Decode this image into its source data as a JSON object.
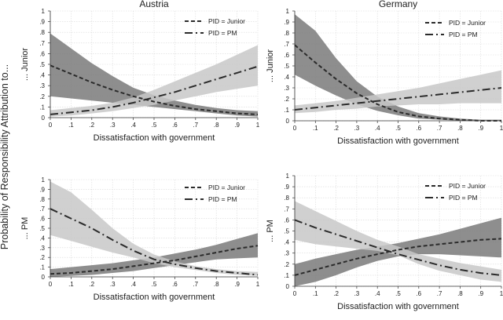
{
  "ylabel_global": "Probability of Responsibility Attribution to...",
  "chart_data": [
    {
      "type": "line",
      "title": "Austria",
      "xlabel": "Dissatisfaction with government",
      "ylabel": "... Junior",
      "xlim": [
        0,
        1
      ],
      "ylim": [
        0,
        1
      ],
      "xticks": [
        "0",
        ".1",
        ".2",
        ".3",
        ".4",
        ".5",
        ".6",
        ".7",
        ".8",
        ".9",
        "1"
      ],
      "yticks": [
        "0",
        ".1",
        ".2",
        ".3",
        ".4",
        ".5",
        ".6",
        ".7",
        ".8",
        ".9",
        "1"
      ],
      "legend": [
        "PID = Junior",
        "PID = PM"
      ],
      "x": [
        0,
        0.1,
        0.2,
        0.3,
        0.4,
        0.5,
        0.6,
        0.7,
        0.8,
        0.9,
        1
      ],
      "series": [
        {
          "name": "PID = Junior",
          "style": "dashed",
          "band_color": "#7a7a7a",
          "values": [
            0.49,
            0.41,
            0.33,
            0.26,
            0.2,
            0.15,
            0.11,
            0.08,
            0.06,
            0.04,
            0.03
          ],
          "lower": [
            0.2,
            0.18,
            0.16,
            0.14,
            0.12,
            0.1,
            0.08,
            0.06,
            0.04,
            0.02,
            0.01
          ],
          "upper": [
            0.79,
            0.65,
            0.51,
            0.39,
            0.28,
            0.21,
            0.16,
            0.12,
            0.09,
            0.07,
            0.06
          ]
        },
        {
          "name": "PID = PM",
          "style": "dashdot",
          "band_color": "#c8c8c8",
          "values": [
            0.03,
            0.05,
            0.07,
            0.1,
            0.14,
            0.19,
            0.24,
            0.3,
            0.36,
            0.42,
            0.48
          ],
          "lower": [
            0.01,
            0.02,
            0.04,
            0.06,
            0.09,
            0.12,
            0.16,
            0.2,
            0.24,
            0.27,
            0.3
          ],
          "upper": [
            0.07,
            0.09,
            0.11,
            0.14,
            0.19,
            0.26,
            0.34,
            0.42,
            0.5,
            0.59,
            0.68
          ]
        }
      ]
    },
    {
      "type": "line",
      "title": "Germany",
      "xlabel": "Dissatisfaction with government",
      "ylabel": "... Junior",
      "xlim": [
        0,
        1
      ],
      "ylim": [
        0,
        1
      ],
      "xticks": [
        "0",
        ".1",
        ".2",
        ".3",
        ".4",
        ".5",
        ".6",
        ".7",
        ".8",
        ".9",
        "1"
      ],
      "yticks": [
        "0",
        ".1",
        ".2",
        ".3",
        ".4",
        ".5",
        ".6",
        ".7",
        ".8",
        ".9",
        "1"
      ],
      "legend": [
        "PID = Junior",
        "PID = PM"
      ],
      "x": [
        0,
        0.1,
        0.2,
        0.3,
        0.4,
        0.5,
        0.6,
        0.7,
        0.8,
        0.9,
        1
      ],
      "series": [
        {
          "name": "PID = Junior",
          "style": "dashed",
          "band_color": "#7a7a7a",
          "values": [
            0.69,
            0.53,
            0.38,
            0.25,
            0.15,
            0.08,
            0.04,
            0.02,
            0.01,
            0.0,
            0.0
          ],
          "lower": [
            0.42,
            0.32,
            0.23,
            0.15,
            0.09,
            0.05,
            0.02,
            0.01,
            0.0,
            0.0,
            0.0
          ],
          "upper": [
            0.97,
            0.82,
            0.57,
            0.36,
            0.22,
            0.13,
            0.07,
            0.04,
            0.02,
            0.01,
            0.01
          ]
        },
        {
          "name": "PID = PM",
          "style": "dashdot",
          "band_color": "#c8c8c8",
          "values": [
            0.1,
            0.12,
            0.14,
            0.16,
            0.18,
            0.2,
            0.22,
            0.24,
            0.26,
            0.28,
            0.3
          ],
          "lower": [
            0.07,
            0.08,
            0.1,
            0.11,
            0.13,
            0.14,
            0.15,
            0.15,
            0.16,
            0.16,
            0.16
          ],
          "upper": [
            0.14,
            0.16,
            0.18,
            0.21,
            0.24,
            0.27,
            0.3,
            0.34,
            0.38,
            0.42,
            0.46
          ]
        }
      ]
    },
    {
      "type": "line",
      "title": "",
      "xlabel": "Dissatisfaction with government",
      "ylabel": "... PM",
      "xlim": [
        0,
        1
      ],
      "ylim": [
        0,
        1
      ],
      "xticks": [
        "0",
        ".1",
        ".2",
        ".3",
        ".4",
        ".5",
        ".6",
        ".7",
        ".8",
        ".9",
        "1"
      ],
      "yticks": [
        "0",
        ".1",
        ".2",
        ".3",
        ".4",
        ".5",
        ".6",
        ".7",
        ".8",
        ".9",
        "1"
      ],
      "legend": [
        "PID = Junior",
        "PID = PM"
      ],
      "x": [
        0,
        0.1,
        0.2,
        0.3,
        0.4,
        0.5,
        0.6,
        0.7,
        0.8,
        0.9,
        1
      ],
      "series": [
        {
          "name": "PID = Junior",
          "style": "dashed",
          "band_color": "#7a7a7a",
          "values": [
            0.03,
            0.04,
            0.06,
            0.08,
            0.11,
            0.14,
            0.17,
            0.21,
            0.25,
            0.29,
            0.32
          ],
          "lower": [
            0.0,
            0.01,
            0.02,
            0.04,
            0.06,
            0.09,
            0.12,
            0.15,
            0.18,
            0.19,
            0.2
          ],
          "upper": [
            0.08,
            0.1,
            0.12,
            0.14,
            0.17,
            0.2,
            0.24,
            0.28,
            0.33,
            0.39,
            0.45
          ]
        },
        {
          "name": "PID = PM",
          "style": "dashdot",
          "band_color": "#c8c8c8",
          "values": [
            0.7,
            0.6,
            0.5,
            0.38,
            0.27,
            0.18,
            0.13,
            0.09,
            0.06,
            0.04,
            0.02
          ],
          "lower": [
            0.43,
            0.37,
            0.31,
            0.25,
            0.2,
            0.14,
            0.1,
            0.07,
            0.04,
            0.02,
            0.01
          ],
          "upper": [
            0.98,
            0.87,
            0.69,
            0.5,
            0.34,
            0.23,
            0.16,
            0.11,
            0.08,
            0.06,
            0.05
          ]
        }
      ]
    },
    {
      "type": "line",
      "title": "",
      "xlabel": "Dissatisfaction with government",
      "ylabel": "... PM",
      "xlim": [
        0,
        1
      ],
      "ylim": [
        0,
        1
      ],
      "xticks": [
        "0",
        ".1",
        ".2",
        ".3",
        ".4",
        ".5",
        ".6",
        ".7",
        ".8",
        ".9",
        "1"
      ],
      "yticks": [
        "0",
        ".1",
        ".2",
        ".3",
        ".4",
        ".5",
        ".6",
        ".7",
        ".8",
        ".9",
        "1"
      ],
      "legend": [
        "PID = Junior",
        "PID = PM"
      ],
      "x": [
        0,
        0.1,
        0.2,
        0.3,
        0.4,
        0.5,
        0.6,
        0.7,
        0.8,
        0.9,
        1
      ],
      "series": [
        {
          "name": "PID = Junior",
          "style": "dashed",
          "band_color": "#7a7a7a",
          "values": [
            0.1,
            0.15,
            0.2,
            0.25,
            0.29,
            0.33,
            0.36,
            0.38,
            0.4,
            0.42,
            0.43
          ],
          "lower": [
            0.0,
            0.04,
            0.1,
            0.17,
            0.23,
            0.27,
            0.29,
            0.29,
            0.28,
            0.27,
            0.26
          ],
          "upper": [
            0.2,
            0.25,
            0.29,
            0.33,
            0.36,
            0.39,
            0.43,
            0.47,
            0.52,
            0.57,
            0.62
          ]
        },
        {
          "name": "PID = PM",
          "style": "dashdot",
          "band_color": "#c8c8c8",
          "values": [
            0.6,
            0.53,
            0.47,
            0.41,
            0.35,
            0.29,
            0.24,
            0.19,
            0.15,
            0.12,
            0.1
          ],
          "lower": [
            0.42,
            0.38,
            0.36,
            0.34,
            0.32,
            0.28,
            0.2,
            0.14,
            0.1,
            0.06,
            0.04
          ],
          "upper": [
            0.77,
            0.68,
            0.59,
            0.5,
            0.42,
            0.36,
            0.29,
            0.25,
            0.21,
            0.18,
            0.15
          ]
        }
      ]
    }
  ]
}
